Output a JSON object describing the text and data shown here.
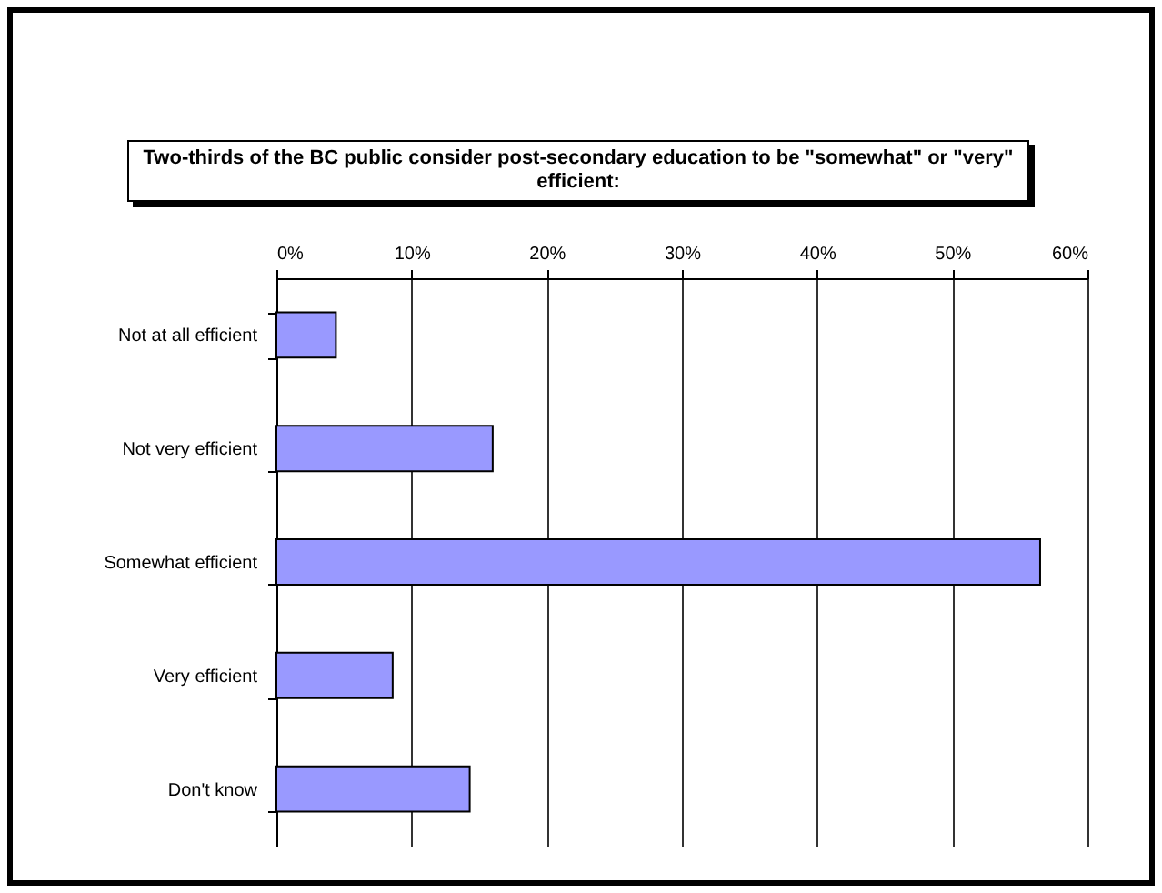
{
  "chart_data": {
    "type": "bar",
    "orientation": "horizontal",
    "title": "Two-thirds of the BC public consider post-secondary education to be \"somewhat\" or \"very\" efficient:",
    "categories": [
      "Not at all efficient",
      "Not very efficient",
      "Somewhat efficient",
      "Very efficient",
      "Don't know"
    ],
    "values": [
      4.4,
      16.0,
      56.5,
      8.6,
      14.3
    ],
    "color": "#9999ff",
    "xlim": [
      0,
      60
    ],
    "xticks": [
      {
        "value": 0,
        "label": "0%"
      },
      {
        "value": 10,
        "label": "10%"
      },
      {
        "value": 20,
        "label": "20%"
      },
      {
        "value": 30,
        "label": "30%"
      },
      {
        "value": 40,
        "label": "40%"
      },
      {
        "value": 50,
        "label": "50%"
      },
      {
        "value": 60,
        "label": "60%"
      }
    ],
    "grid": "x"
  }
}
